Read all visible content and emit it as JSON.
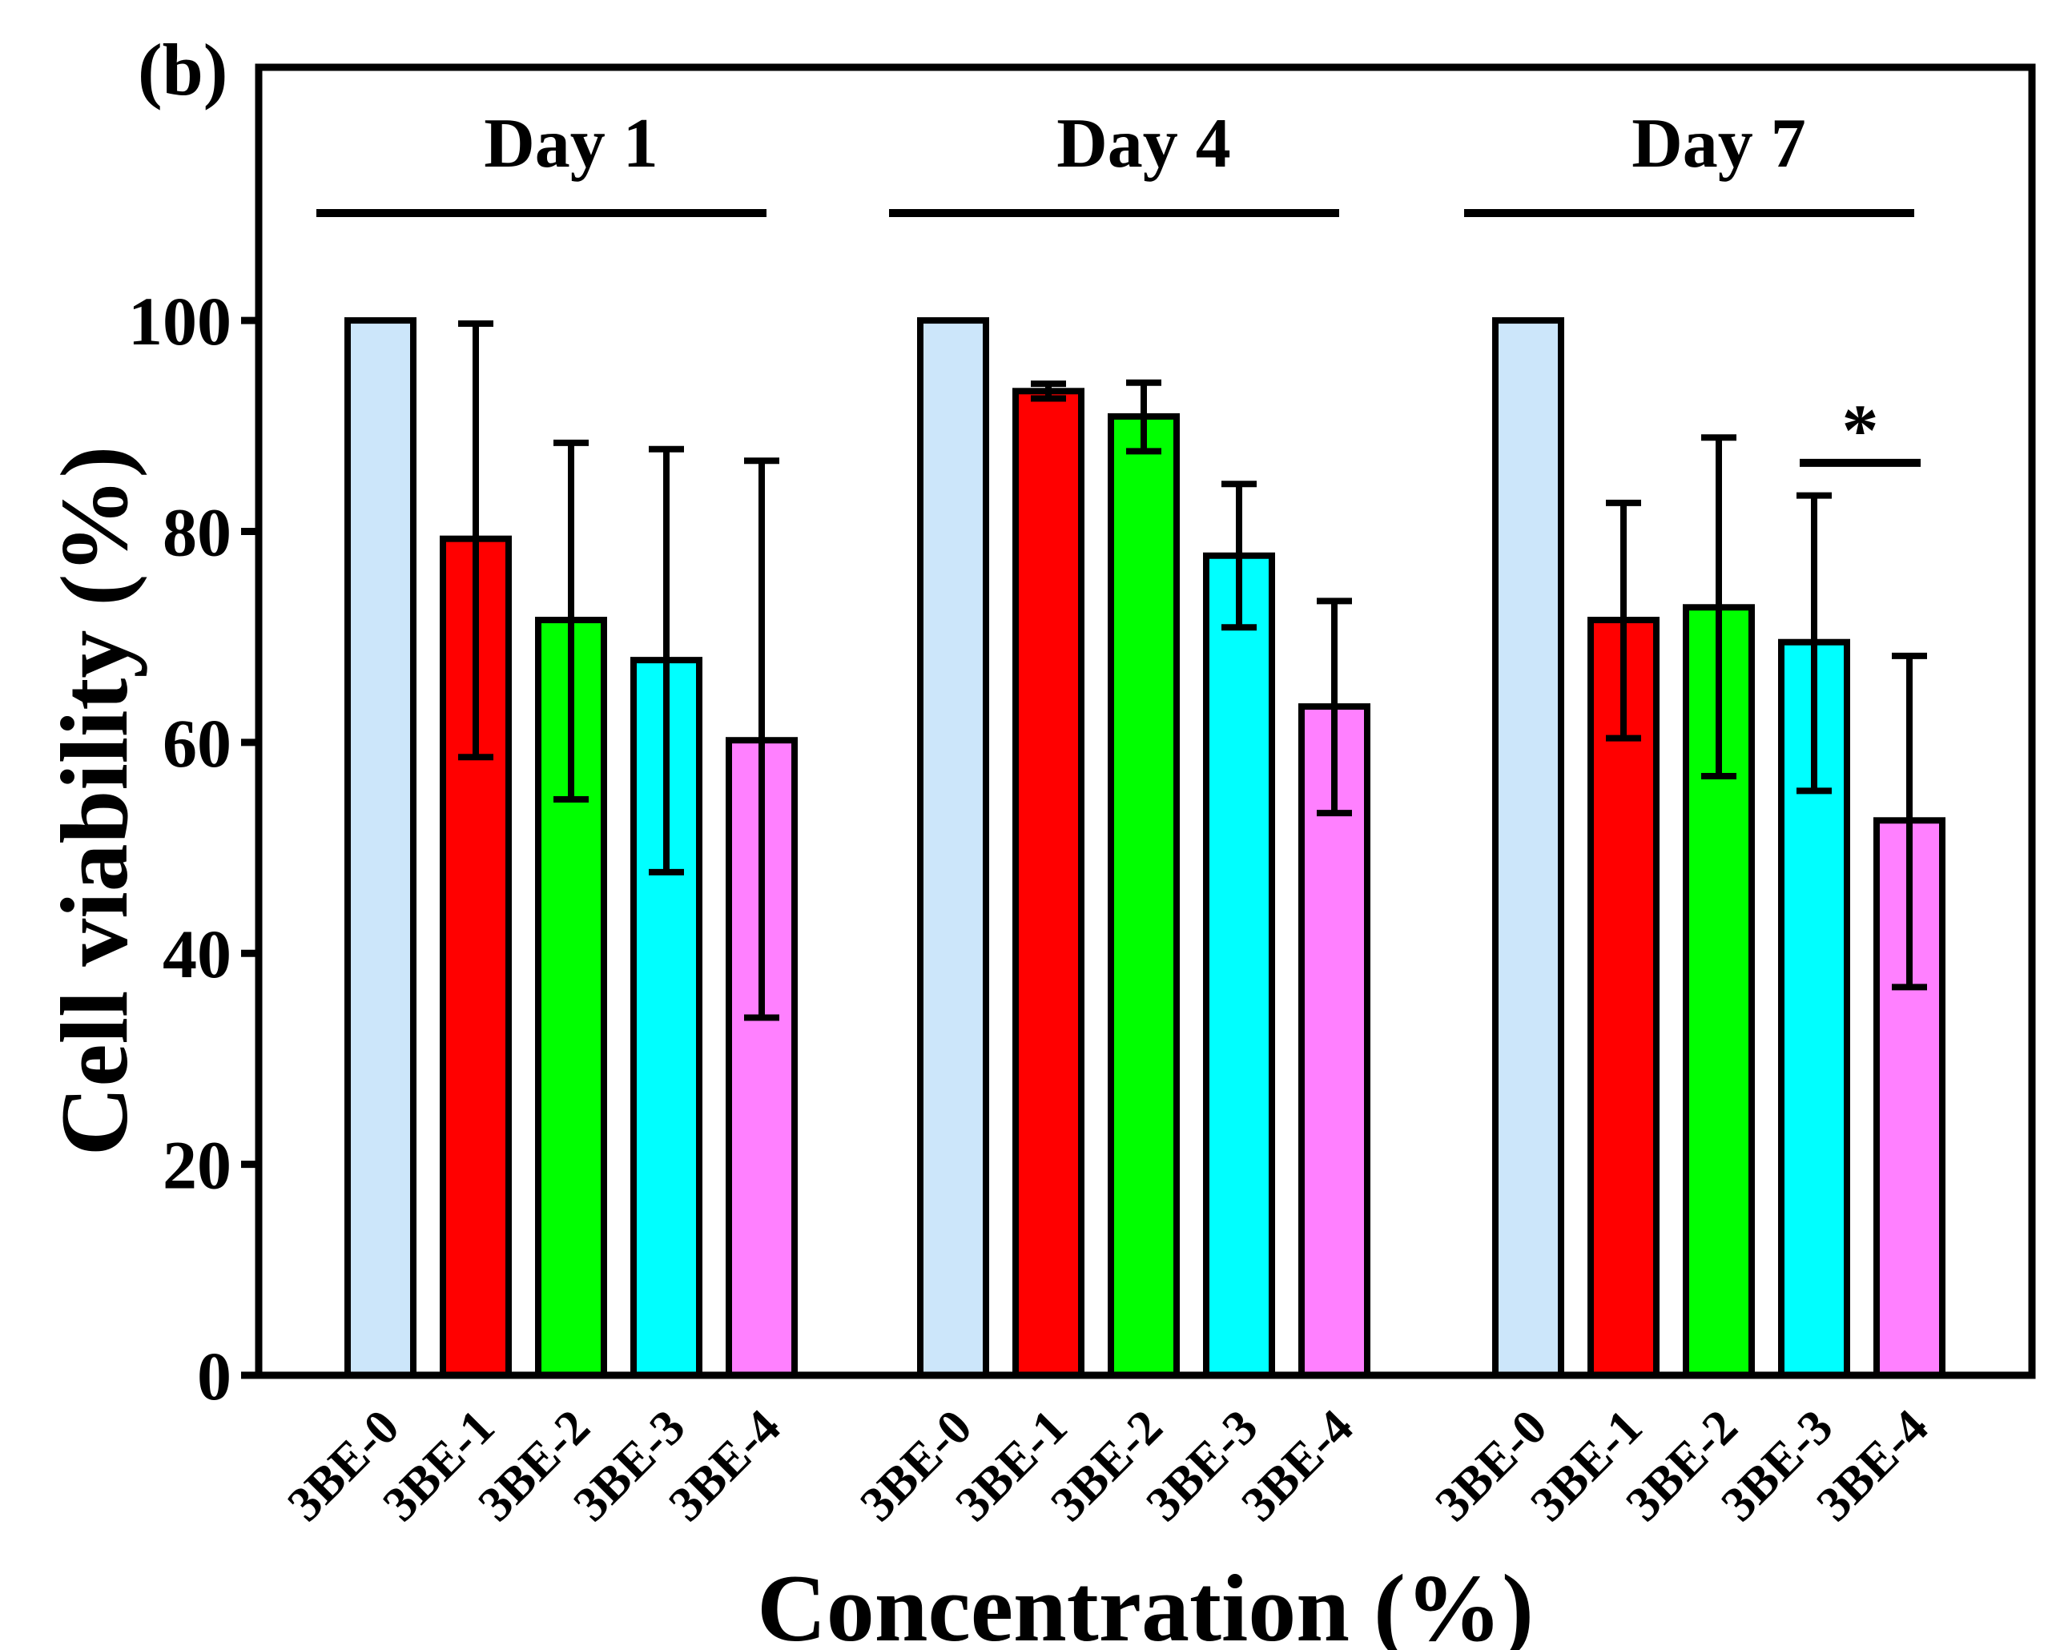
{
  "panel_label": "(b)",
  "chart_data": {
    "type": "bar",
    "title": "",
    "xlabel": "Concentration (%)",
    "ylabel": "Cell viability (%)",
    "ylim": [
      0,
      124
    ],
    "yticks": [
      0,
      20,
      40,
      60,
      80,
      100
    ],
    "grid": false,
    "groups": [
      {
        "label": "Day 1",
        "categories": [
          "3BE-0",
          "3BE-1",
          "3BE-2",
          "3BE-3",
          "3BE-4"
        ],
        "values": [
          100,
          79.3,
          71.6,
          67.8,
          60.2
        ],
        "error_upper": [
          null,
          99.7,
          88.4,
          87.8,
          86.7
        ],
        "error_lower": [
          null,
          58.6,
          54.6,
          47.7,
          33.9
        ]
      },
      {
        "label": "Day 4",
        "categories": [
          "3BE-0",
          "3BE-1",
          "3BE-2",
          "3BE-3",
          "3BE-4"
        ],
        "values": [
          100,
          93.3,
          90.9,
          77.7,
          63.4
        ],
        "error_upper": [
          null,
          94.0,
          94.1,
          84.5,
          73.4
        ],
        "error_lower": [
          null,
          92.6,
          87.6,
          70.9,
          53.3
        ]
      },
      {
        "label": "Day 7",
        "categories": [
          "3BE-0",
          "3BE-1",
          "3BE-2",
          "3BE-3",
          "3BE-4"
        ],
        "values": [
          100,
          71.6,
          72.8,
          69.5,
          52.6
        ],
        "error_upper": [
          null,
          82.7,
          88.9,
          83.4,
          68.2
        ],
        "error_lower": [
          null,
          60.4,
          56.8,
          55.4,
          36.8
        ]
      }
    ],
    "series_colors": [
      "#cce6fa",
      "#ff0000",
      "#00ff00",
      "#00ffff",
      "#ff80ff"
    ],
    "annotations": [
      {
        "text": "*",
        "group": 2,
        "from_index": 3,
        "to_index": 4,
        "y": 86.5
      }
    ]
  }
}
